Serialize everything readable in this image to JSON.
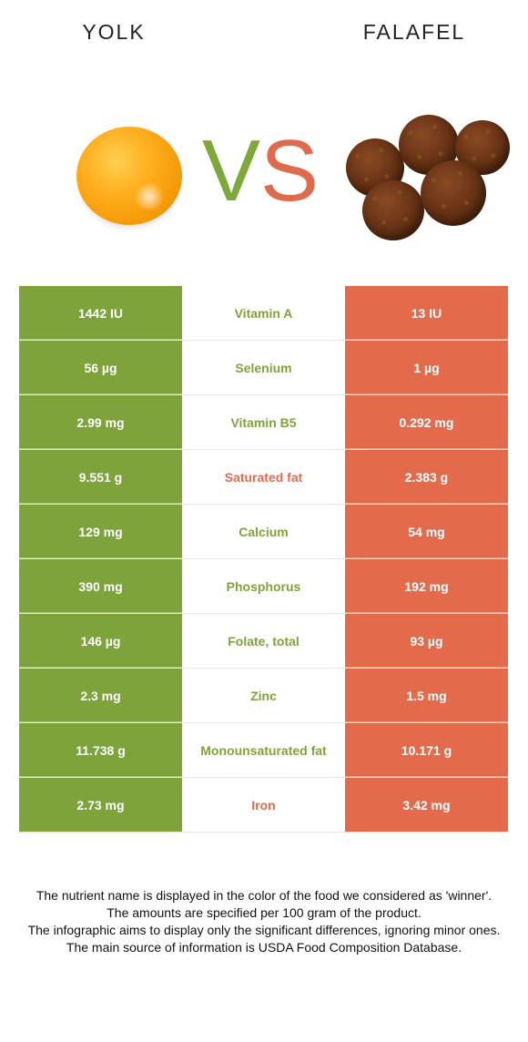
{
  "foods": {
    "left": "YOLK",
    "right": "FALAFEL"
  },
  "vs": {
    "v": "V",
    "s": "S"
  },
  "colors": {
    "winner_left": "#7ea33a",
    "winner_right": "#e36b4b"
  },
  "rows": [
    {
      "left": "1442 IU",
      "nutrient": "Vitamin A",
      "right": "13 IU",
      "winner": "left"
    },
    {
      "left": "56 µg",
      "nutrient": "Selenium",
      "right": "1 µg",
      "winner": "left"
    },
    {
      "left": "2.99 mg",
      "nutrient": "Vitamin B5",
      "right": "0.292 mg",
      "winner": "left"
    },
    {
      "left": "9.551 g",
      "nutrient": "Saturated fat",
      "right": "2.383 g",
      "winner": "right"
    },
    {
      "left": "129 mg",
      "nutrient": "Calcium",
      "right": "54 mg",
      "winner": "left"
    },
    {
      "left": "390 mg",
      "nutrient": "Phosphorus",
      "right": "192 mg",
      "winner": "left"
    },
    {
      "left": "146 µg",
      "nutrient": "Folate, total",
      "right": "93 µg",
      "winner": "left"
    },
    {
      "left": "2.3 mg",
      "nutrient": "Zinc",
      "right": "1.5 mg",
      "winner": "left"
    },
    {
      "left": "11.738 g",
      "nutrient": "Monounsaturated fat",
      "right": "10.171 g",
      "winner": "left"
    },
    {
      "left": "2.73 mg",
      "nutrient": "Iron",
      "right": "3.42 mg",
      "winner": "right"
    }
  ],
  "footer": [
    "The nutrient name is displayed in the color of the food we considered as 'winner'.",
    "The amounts are specified per 100 gram of the product.",
    "The infographic aims to display only the significant differences, ignoring minor ones.",
    "The main source of information is USDA Food Composition Database."
  ]
}
